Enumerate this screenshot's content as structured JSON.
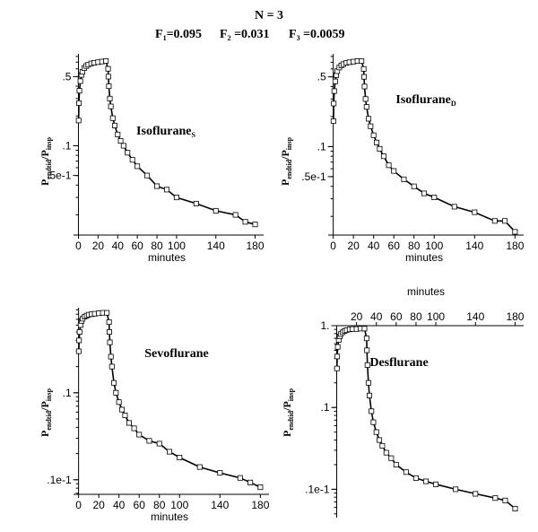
{
  "header": {
    "line1": "N = 3",
    "f1": "F",
    "f1_sub": "1",
    "f1_val": "=0.095",
    "f2": "F",
    "f2_sub": "2",
    "f2_val": " =0.031",
    "f3": "F",
    "f3_sub": "3",
    "f3_val": " =0.0059"
  },
  "ylabel": {
    "main": "P",
    "sub1": "endtid",
    "mid": "/P",
    "sub2": "insp"
  },
  "chart_data": [
    {
      "type": "scatter",
      "title": "Isoflurane",
      "title_sub": "S",
      "xlabel": "minutes",
      "xlabel_position": "bottom",
      "x_axis_position": "bottom",
      "xlim": [
        -5,
        185
      ],
      "ylim": [
        0.0125,
        0.85
      ],
      "yscale": "log",
      "xticks": [
        0,
        20,
        40,
        60,
        80,
        100,
        140,
        180
      ],
      "yticks": [
        {
          "value": 0.5,
          "label": ".5"
        },
        {
          "value": 0.1,
          "label": ".1"
        },
        {
          "value": 0.05,
          "label": ".5e-1"
        }
      ],
      "grid": false,
      "series": [
        {
          "points": [
            {
              "x": 0.2,
              "y": 0.18
            },
            {
              "x": 0.5,
              "y": 0.27
            },
            {
              "x": 1,
              "y": 0.36
            },
            {
              "x": 2,
              "y": 0.45
            },
            {
              "x": 3,
              "y": 0.52
            },
            {
              "x": 4,
              "y": 0.56
            },
            {
              "x": 6,
              "y": 0.61
            },
            {
              "x": 8,
              "y": 0.64
            },
            {
              "x": 10,
              "y": 0.66
            },
            {
              "x": 13,
              "y": 0.68
            },
            {
              "x": 16,
              "y": 0.69
            },
            {
              "x": 20,
              "y": 0.7
            },
            {
              "x": 24,
              "y": 0.71
            },
            {
              "x": 28,
              "y": 0.72
            },
            {
              "x": 30.2,
              "y": 0.6
            },
            {
              "x": 30.5,
              "y": 0.5
            },
            {
              "x": 31,
              "y": 0.4
            },
            {
              "x": 32,
              "y": 0.3
            },
            {
              "x": 33,
              "y": 0.25
            },
            {
              "x": 35,
              "y": 0.19
            },
            {
              "x": 37,
              "y": 0.16
            },
            {
              "x": 40,
              "y": 0.13
            },
            {
              "x": 43,
              "y": 0.112
            },
            {
              "x": 46,
              "y": 0.1
            },
            {
              "x": 50,
              "y": 0.085
            },
            {
              "x": 55,
              "y": 0.072
            },
            {
              "x": 60,
              "y": 0.062
            },
            {
              "x": 70,
              "y": 0.05
            },
            {
              "x": 80,
              "y": 0.039
            },
            {
              "x": 90,
              "y": 0.036
            },
            {
              "x": 100,
              "y": 0.03
            },
            {
              "x": 120,
              "y": 0.026
            },
            {
              "x": 140,
              "y": 0.022
            },
            {
              "x": 160,
              "y": 0.02
            },
            {
              "x": 170,
              "y": 0.017
            },
            {
              "x": 180,
              "y": 0.016
            }
          ]
        }
      ],
      "fit_line": true
    },
    {
      "type": "scatter",
      "title": "Isoflurane",
      "title_sub": "D",
      "xlabel": "minutes",
      "xlabel_position": "bottom",
      "x_axis_position": "bottom",
      "xlim": [
        -5,
        185
      ],
      "ylim": [
        0.013,
        0.85
      ],
      "yscale": "log",
      "xticks": [
        0,
        20,
        40,
        60,
        80,
        100,
        140,
        180
      ],
      "yticks": [
        {
          "value": 0.5,
          "label": ".5"
        },
        {
          "value": 0.1,
          "label": ".1"
        },
        {
          "value": 0.05,
          "label": ".5e-1"
        }
      ],
      "grid": false,
      "series": [
        {
          "points": [
            {
              "x": 0.2,
              "y": 0.18
            },
            {
              "x": 0.5,
              "y": 0.27
            },
            {
              "x": 1,
              "y": 0.36
            },
            {
              "x": 2,
              "y": 0.45
            },
            {
              "x": 3,
              "y": 0.52
            },
            {
              "x": 4,
              "y": 0.57
            },
            {
              "x": 6,
              "y": 0.62
            },
            {
              "x": 8,
              "y": 0.65
            },
            {
              "x": 10,
              "y": 0.67
            },
            {
              "x": 13,
              "y": 0.69
            },
            {
              "x": 16,
              "y": 0.7
            },
            {
              "x": 20,
              "y": 0.71
            },
            {
              "x": 24,
              "y": 0.72
            },
            {
              "x": 28,
              "y": 0.72
            },
            {
              "x": 30.2,
              "y": 0.6
            },
            {
              "x": 30.5,
              "y": 0.5
            },
            {
              "x": 31,
              "y": 0.4
            },
            {
              "x": 32,
              "y": 0.3
            },
            {
              "x": 33,
              "y": 0.25
            },
            {
              "x": 35,
              "y": 0.19
            },
            {
              "x": 37,
              "y": 0.16
            },
            {
              "x": 40,
              "y": 0.13
            },
            {
              "x": 43,
              "y": 0.11
            },
            {
              "x": 46,
              "y": 0.095
            },
            {
              "x": 50,
              "y": 0.08
            },
            {
              "x": 55,
              "y": 0.065
            },
            {
              "x": 60,
              "y": 0.057
            },
            {
              "x": 70,
              "y": 0.047
            },
            {
              "x": 80,
              "y": 0.04
            },
            {
              "x": 90,
              "y": 0.034
            },
            {
              "x": 100,
              "y": 0.031
            },
            {
              "x": 120,
              "y": 0.025
            },
            {
              "x": 140,
              "y": 0.022
            },
            {
              "x": 160,
              "y": 0.018
            },
            {
              "x": 170,
              "y": 0.018
            },
            {
              "x": 180,
              "y": 0.014
            }
          ]
        }
      ],
      "fit_line": true
    },
    {
      "type": "scatter",
      "title": "Sevoflurane",
      "title_sub": "",
      "xlabel": "minutes",
      "xlabel_position": "bottom",
      "x_axis_position": "bottom",
      "xlim": [
        -5,
        185
      ],
      "ylim": [
        0.0068,
        0.95
      ],
      "yscale": "log",
      "xticks": [
        0,
        20,
        40,
        60,
        80,
        100,
        140,
        180
      ],
      "yticks": [
        {
          "value": 0.1,
          "label": ".1"
        },
        {
          "value": 0.01,
          "label": ".1e-1"
        }
      ],
      "grid": false,
      "series": [
        {
          "points": [
            {
              "x": 0.2,
              "y": 0.3
            },
            {
              "x": 0.5,
              "y": 0.4
            },
            {
              "x": 1,
              "y": 0.5
            },
            {
              "x": 2,
              "y": 0.6
            },
            {
              "x": 3,
              "y": 0.67
            },
            {
              "x": 4,
              "y": 0.71
            },
            {
              "x": 6,
              "y": 0.75
            },
            {
              "x": 8,
              "y": 0.77
            },
            {
              "x": 10,
              "y": 0.79
            },
            {
              "x": 13,
              "y": 0.8
            },
            {
              "x": 16,
              "y": 0.81
            },
            {
              "x": 20,
              "y": 0.82
            },
            {
              "x": 24,
              "y": 0.83
            },
            {
              "x": 28,
              "y": 0.83
            },
            {
              "x": 30.2,
              "y": 0.65
            },
            {
              "x": 30.5,
              "y": 0.5
            },
            {
              "x": 31,
              "y": 0.38
            },
            {
              "x": 32,
              "y": 0.26
            },
            {
              "x": 33,
              "y": 0.2
            },
            {
              "x": 35,
              "y": 0.13
            },
            {
              "x": 37,
              "y": 0.1
            },
            {
              "x": 40,
              "y": 0.078
            },
            {
              "x": 43,
              "y": 0.064
            },
            {
              "x": 46,
              "y": 0.055
            },
            {
              "x": 50,
              "y": 0.045
            },
            {
              "x": 55,
              "y": 0.039
            },
            {
              "x": 60,
              "y": 0.033
            },
            {
              "x": 70,
              "y": 0.028
            },
            {
              "x": 80,
              "y": 0.026
            },
            {
              "x": 90,
              "y": 0.021
            },
            {
              "x": 100,
              "y": 0.018
            },
            {
              "x": 120,
              "y": 0.014
            },
            {
              "x": 140,
              "y": 0.012
            },
            {
              "x": 160,
              "y": 0.0105
            },
            {
              "x": 170,
              "y": 0.0093
            },
            {
              "x": 180,
              "y": 0.0082
            }
          ]
        }
      ],
      "fit_line": true
    },
    {
      "type": "scatter",
      "title": "Desflurane",
      "title_sub": "",
      "xlabel": "minutes",
      "xlabel_position": "top",
      "x_axis_position": "top",
      "xlim": [
        -5,
        185
      ],
      "ylim": [
        0.0045,
        1.0
      ],
      "yscale": "log",
      "xticks": [
        20,
        40,
        60,
        80,
        100,
        140,
        180
      ],
      "yticks": [
        {
          "value": 1,
          "label": "1."
        },
        {
          "value": 0.1,
          "label": ".1"
        },
        {
          "value": 0.01,
          "label": ".1e-1"
        }
      ],
      "grid": false,
      "series": [
        {
          "points": [
            {
              "x": 0.2,
              "y": 0.3
            },
            {
              "x": 0.5,
              "y": 0.42
            },
            {
              "x": 1,
              "y": 0.55
            },
            {
              "x": 2,
              "y": 0.67
            },
            {
              "x": 3,
              "y": 0.74
            },
            {
              "x": 4,
              "y": 0.79
            },
            {
              "x": 6,
              "y": 0.83
            },
            {
              "x": 8,
              "y": 0.86
            },
            {
              "x": 10,
              "y": 0.88
            },
            {
              "x": 13,
              "y": 0.9
            },
            {
              "x": 16,
              "y": 0.91
            },
            {
              "x": 20,
              "y": 0.91
            },
            {
              "x": 24,
              "y": 0.92
            },
            {
              "x": 28,
              "y": 0.92
            },
            {
              "x": 30.2,
              "y": 0.7
            },
            {
              "x": 30.5,
              "y": 0.5
            },
            {
              "x": 31,
              "y": 0.33
            },
            {
              "x": 32,
              "y": 0.2
            },
            {
              "x": 33,
              "y": 0.14
            },
            {
              "x": 35,
              "y": 0.09
            },
            {
              "x": 37,
              "y": 0.066
            },
            {
              "x": 40,
              "y": 0.05
            },
            {
              "x": 43,
              "y": 0.04
            },
            {
              "x": 46,
              "y": 0.034
            },
            {
              "x": 50,
              "y": 0.028
            },
            {
              "x": 55,
              "y": 0.024
            },
            {
              "x": 60,
              "y": 0.02
            },
            {
              "x": 70,
              "y": 0.0162
            },
            {
              "x": 80,
              "y": 0.0137
            },
            {
              "x": 90,
              "y": 0.0125
            },
            {
              "x": 100,
              "y": 0.0115
            },
            {
              "x": 120,
              "y": 0.01
            },
            {
              "x": 140,
              "y": 0.0088
            },
            {
              "x": 160,
              "y": 0.0078
            },
            {
              "x": 170,
              "y": 0.0073
            },
            {
              "x": 180,
              "y": 0.0058
            }
          ]
        }
      ],
      "fit_line": true
    }
  ]
}
